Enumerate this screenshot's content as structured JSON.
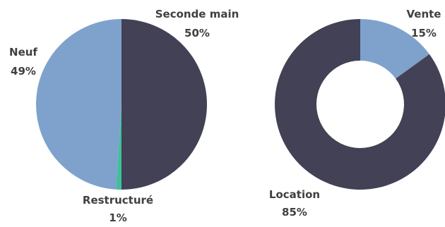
{
  "chart_data": [
    {
      "type": "pie",
      "categories": [
        "Seconde main",
        "Restructuré",
        "Neuf"
      ],
      "values": [
        50,
        1,
        49
      ],
      "labels": [
        "50%",
        "1%",
        "49%"
      ],
      "colors": [
        "#434155",
        "#3fbf9a",
        "#7ea2cc"
      ]
    },
    {
      "type": "pie",
      "style": "donut",
      "categories": [
        "Vente",
        "Location"
      ],
      "values": [
        15,
        85
      ],
      "labels": [
        "15%",
        "85%"
      ],
      "colors": [
        "#7ea2cc",
        "#434155"
      ]
    }
  ]
}
